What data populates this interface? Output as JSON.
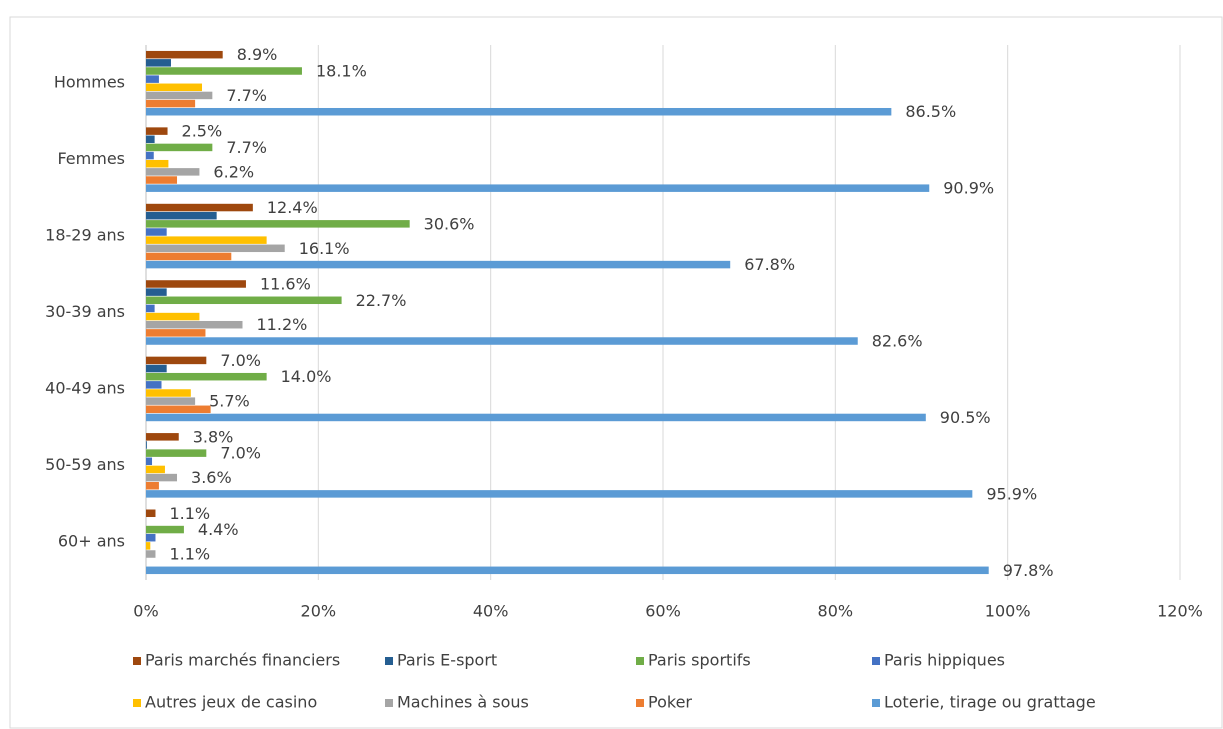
{
  "chart_data": {
    "type": "bar",
    "orientation": "horizontal",
    "categories": [
      "Hommes",
      "Femmes",
      "18-29 ans",
      "30-39 ans",
      "40-49 ans",
      "50-59 ans",
      "60+ ans"
    ],
    "series": [
      {
        "name": "Paris marchés financiers",
        "color": "#9E480E",
        "values": [
          8.9,
          2.5,
          12.4,
          11.6,
          7.0,
          3.8,
          1.1
        ],
        "value_labels": [
          "8.9%",
          "2.5%",
          "12.4%",
          "11.6%",
          "7.0%",
          "3.8%",
          "1.1%"
        ]
      },
      {
        "name": "Paris E-sport",
        "color": "#255E91",
        "values": [
          2.9,
          1.0,
          8.2,
          2.4,
          2.4,
          0.1,
          0
        ]
      },
      {
        "name": "Paris sportifs",
        "color": "#70AD47",
        "values": [
          18.1,
          7.7,
          30.6,
          22.7,
          14.0,
          7.0,
          4.4
        ],
        "value_labels": [
          "18.1%",
          "7.7%",
          "30.6%",
          "22.7%",
          "14.0%",
          "7.0%",
          "4.4%"
        ]
      },
      {
        "name": "Paris hippiques",
        "color": "#4472C4",
        "values": [
          1.5,
          0.9,
          2.4,
          1.0,
          1.8,
          0.7,
          1.1
        ]
      },
      {
        "name": "Autres jeux de casino",
        "color": "#FFC000",
        "values": [
          6.5,
          2.6,
          14.0,
          6.2,
          5.2,
          2.2,
          0.5
        ]
      },
      {
        "name": "Machines à sous",
        "color": "#A5A5A5",
        "values": [
          7.7,
          6.2,
          16.1,
          11.2,
          5.7,
          3.6,
          1.1
        ],
        "value_labels": [
          "7.7%",
          "6.2%",
          "16.1%",
          "11.2%",
          "5.7%",
          "3.6%",
          "1.1%"
        ]
      },
      {
        "name": "Poker",
        "color": "#ED7D31",
        "values": [
          5.7,
          3.6,
          9.9,
          6.9,
          7.5,
          1.5,
          0
        ]
      },
      {
        "name": "Loterie, tirage ou grattage",
        "color": "#5B9BD5",
        "values": [
          86.5,
          90.9,
          67.8,
          82.6,
          90.5,
          95.9,
          97.8
        ],
        "value_labels": [
          "86.5%",
          "90.9%",
          "67.8%",
          "82.6%",
          "90.5%",
          "95.9%",
          "97.8%"
        ]
      }
    ],
    "xlim": [
      0,
      120
    ],
    "xticks": [
      {
        "value": 0,
        "label": "0%"
      },
      {
        "value": 20,
        "label": "20%"
      },
      {
        "value": 40,
        "label": "40%"
      },
      {
        "value": 60,
        "label": "60%"
      },
      {
        "value": 80,
        "label": "80%"
      },
      {
        "value": 100,
        "label": "100%"
      },
      {
        "value": 120,
        "label": "120%"
      }
    ],
    "grid": true
  }
}
